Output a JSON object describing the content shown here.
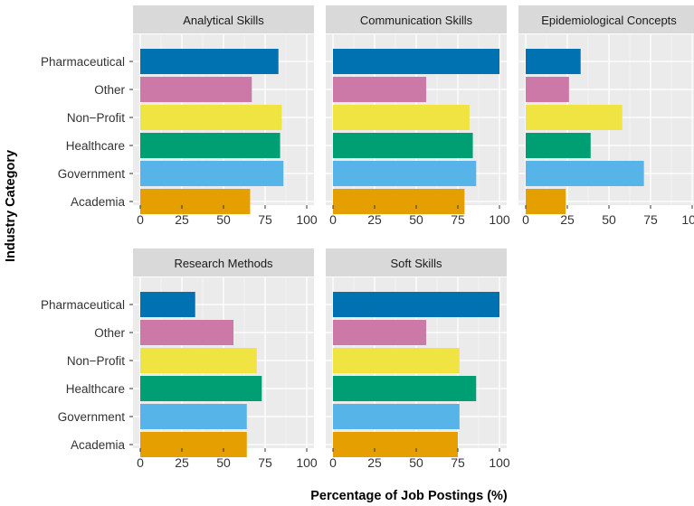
{
  "chart_data": {
    "type": "bar",
    "orientation": "horizontal",
    "faceted": true,
    "xlabel": "Percentage of Job Postings (%)",
    "ylabel": "Industry Category",
    "xlim": [
      0,
      100
    ],
    "xticks": [
      "0",
      "25",
      "50",
      "75",
      "100"
    ],
    "categories": [
      "Pharmaceutical",
      "Other",
      "Non−Profit",
      "Healthcare",
      "Government",
      "Academia"
    ],
    "colors": {
      "Pharmaceutical": "#0072B2",
      "Other": "#CC79A7",
      "Non−Profit": "#F0E442",
      "Healthcare": "#009E73",
      "Government": "#56B4E9",
      "Academia": "#E69F00"
    },
    "panels": [
      {
        "title": "Analytical Skills",
        "values": [
          83,
          67,
          85,
          84,
          86,
          66
        ]
      },
      {
        "title": "Communication Skills",
        "values": [
          100,
          56,
          82,
          84,
          86,
          79
        ]
      },
      {
        "title": "Epidemiological Concepts",
        "values": [
          33,
          26,
          58,
          39,
          71,
          24
        ]
      },
      {
        "title": "Research Methods",
        "values": [
          33,
          56,
          70,
          73,
          64,
          64
        ]
      },
      {
        "title": "Soft Skills",
        "values": [
          100,
          56,
          76,
          86,
          76,
          75
        ]
      }
    ]
  }
}
